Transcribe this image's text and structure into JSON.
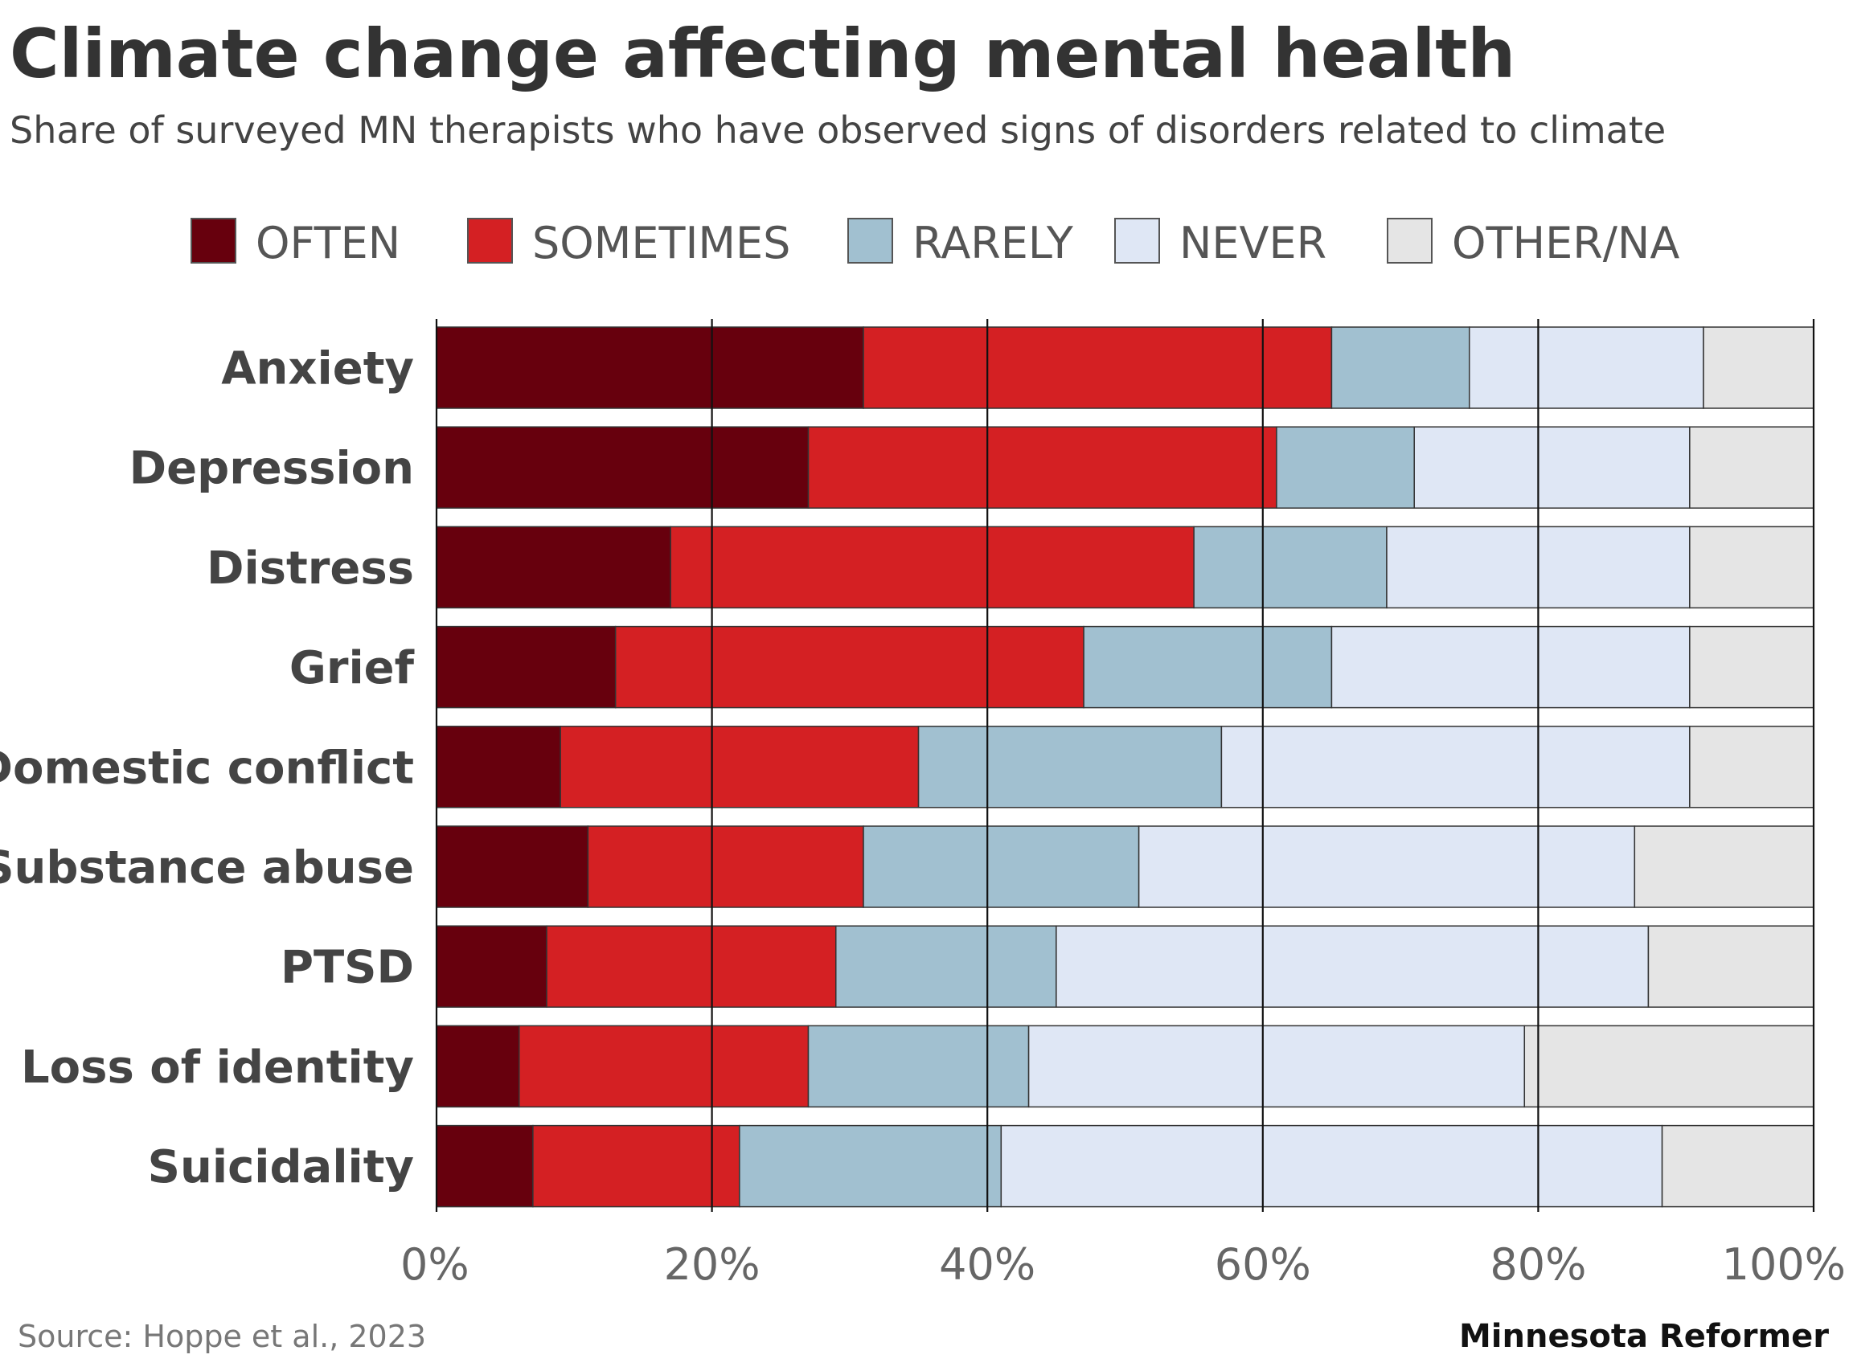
{
  "chart_data": {
    "type": "bar",
    "orientation": "horizontal",
    "stacked": true,
    "title": "Climate change affecting mental health",
    "subtitle": "Share of surveyed MN therapists who have observed signs of disorders related to climate",
    "categories": [
      "Anxiety",
      "Depression",
      "Distress",
      "Grief",
      "Domestic conflict",
      "Substance abuse",
      "PTSD",
      "Loss of identity",
      "Suicidality"
    ],
    "series": [
      {
        "name": "OFTEN",
        "color": "#67000d",
        "values": [
          31,
          27,
          17,
          13,
          9,
          11,
          8,
          6,
          7
        ]
      },
      {
        "name": "SOMETIMES",
        "color": "#d42023",
        "values": [
          34,
          34,
          38,
          34,
          26,
          20,
          21,
          21,
          15
        ]
      },
      {
        "name": "RARELY",
        "color": "#a1c0d0",
        "values": [
          10,
          10,
          14,
          18,
          22,
          20,
          16,
          16,
          19
        ]
      },
      {
        "name": "NEVER",
        "color": "#dfe7f5",
        "values": [
          17,
          20,
          22,
          26,
          34,
          36,
          43,
          36,
          48
        ]
      },
      {
        "name": "OTHER/NA",
        "color": "#e5e5e5",
        "values": [
          8,
          9,
          9,
          9,
          9,
          13,
          12,
          21,
          11
        ]
      }
    ],
    "xlim": [
      0,
      100
    ],
    "xticks": [
      0,
      20,
      40,
      60,
      80,
      100
    ],
    "xtick_labels": [
      "0%",
      "20%",
      "40%",
      "60%",
      "80%",
      "100%"
    ],
    "grid": true,
    "legend_position": "top",
    "xlabel": "",
    "ylabel": ""
  },
  "footer": {
    "source": "Source: Hoppe et al., 2023",
    "brand": "Minnesota Reformer"
  }
}
